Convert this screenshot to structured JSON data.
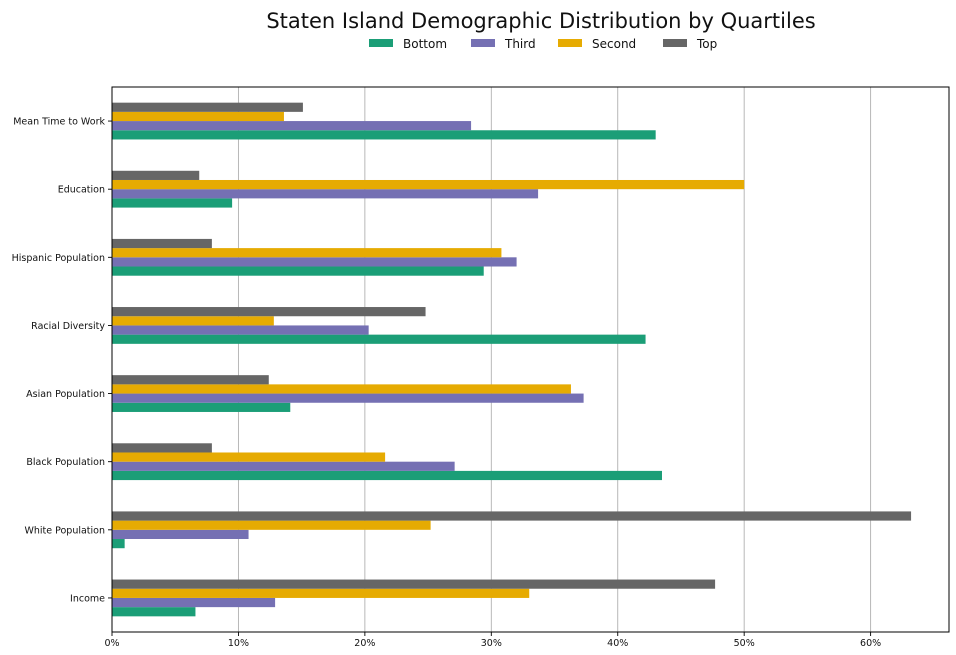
{
  "chart_data": {
    "type": "bar",
    "orientation": "horizontal",
    "title": "Staten Island Demographic Distribution by Quartiles",
    "xlabel": "",
    "ylabel": "",
    "xlim": [
      0,
      66.2
    ],
    "x_ticks": [
      0,
      10,
      20,
      30,
      40,
      50,
      60
    ],
    "x_tick_labels": [
      "0%",
      "10%",
      "20%",
      "30%",
      "40%",
      "50%",
      "60%"
    ],
    "grid": "vertical",
    "legend_position": "top-center",
    "categories": [
      "Mean Time to Work",
      "Education",
      "Hispanic Population",
      "Racial Diversity",
      "Asian Population",
      "Black Population",
      "White Population",
      "Income"
    ],
    "series": [
      {
        "name": "Bottom",
        "color": "#1b9e77",
        "values": [
          43.0,
          9.5,
          29.4,
          42.2,
          14.1,
          43.5,
          1.0,
          6.6
        ]
      },
      {
        "name": "Third",
        "color": "#7570b3",
        "values": [
          28.4,
          33.7,
          32.0,
          20.3,
          37.3,
          27.1,
          10.8,
          12.9
        ]
      },
      {
        "name": "Second",
        "color": "#e6ab02",
        "values": [
          13.6,
          50.0,
          30.8,
          12.8,
          36.3,
          21.6,
          25.2,
          33.0
        ]
      },
      {
        "name": "Top",
        "color": "#666666",
        "values": [
          15.1,
          6.9,
          7.9,
          24.8,
          12.4,
          7.9,
          63.2,
          47.7
        ]
      }
    ]
  }
}
